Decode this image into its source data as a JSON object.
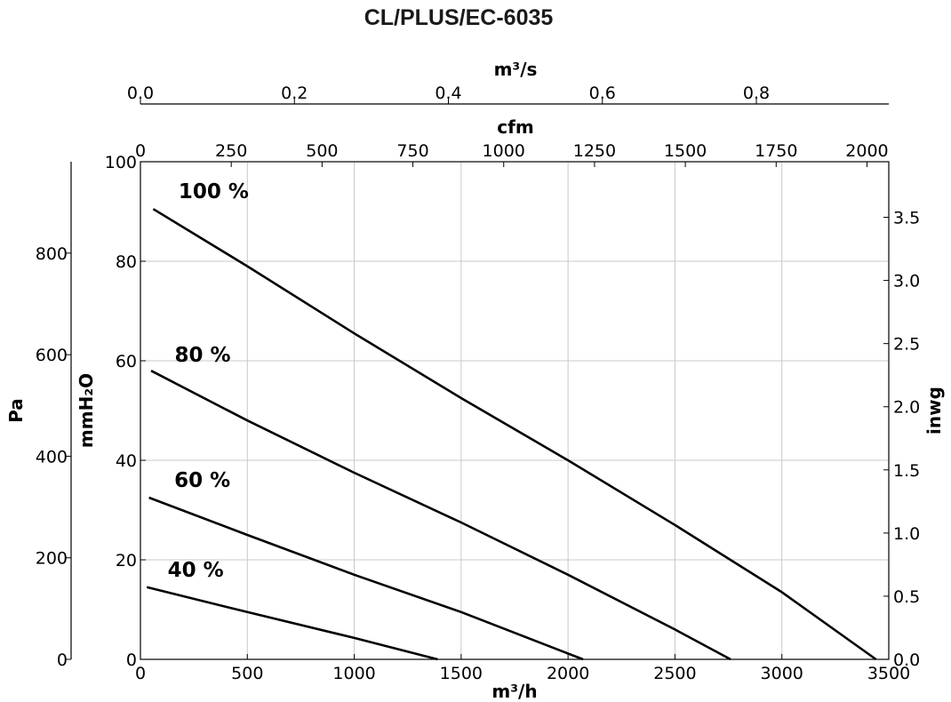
{
  "chart_data": {
    "type": "line",
    "title": "CL/PLUS/EC-6035",
    "grid": true,
    "axes": {
      "x_bottom": {
        "label": "m³/h",
        "range": [
          0,
          3500
        ],
        "ticks": [
          "0",
          "500",
          "1000",
          "1500",
          "2000",
          "2500",
          "3000",
          "3500"
        ]
      },
      "x_top_cfm": {
        "label": "cfm",
        "range": [
          0,
          2060
        ],
        "ticks": [
          "0",
          "250",
          "500",
          "750",
          "1000",
          "1250",
          "1500",
          "1750",
          "2000"
        ]
      },
      "x_top_m3s": {
        "label": "m³/s",
        "range": [
          0,
          0.972
        ],
        "ticks": [
          "0.0",
          "0.2",
          "0.4",
          "0.6",
          "0.8"
        ]
      },
      "y_pa": {
        "label": "Pa",
        "range": [
          0,
          980
        ],
        "ticks": [
          "0",
          "200",
          "400",
          "600",
          "800"
        ]
      },
      "y_mmh2o": {
        "label": "mmH₂O",
        "range": [
          0,
          100
        ],
        "ticks": [
          "0",
          "20",
          "40",
          "60",
          "80",
          "100"
        ]
      },
      "y_inwg": {
        "label": "inwg",
        "range": [
          0,
          3.94
        ],
        "ticks": [
          "0.0",
          "0.5",
          "1.0",
          "1.5",
          "2.0",
          "2.5",
          "3.0",
          "3.5"
        ]
      }
    },
    "series": [
      {
        "name": "100 %",
        "x": [
          60,
          500,
          1000,
          1500,
          2000,
          2500,
          3000,
          3440
        ],
        "y": [
          90.5,
          79,
          65.5,
          52.5,
          40,
          27,
          13.5,
          0
        ]
      },
      {
        "name": "80 %",
        "x": [
          50,
          500,
          1000,
          1500,
          2000,
          2500,
          2760
        ],
        "y": [
          58,
          48,
          37.5,
          27.5,
          17,
          6,
          0
        ]
      },
      {
        "name": "60 %",
        "x": [
          40,
          500,
          1000,
          1500,
          2070
        ],
        "y": [
          32.5,
          25,
          17,
          9.5,
          0
        ]
      },
      {
        "name": "40 %",
        "x": [
          30,
          500,
          1000,
          1390
        ],
        "y": [
          14.5,
          9.5,
          4.3,
          0
        ]
      }
    ]
  }
}
